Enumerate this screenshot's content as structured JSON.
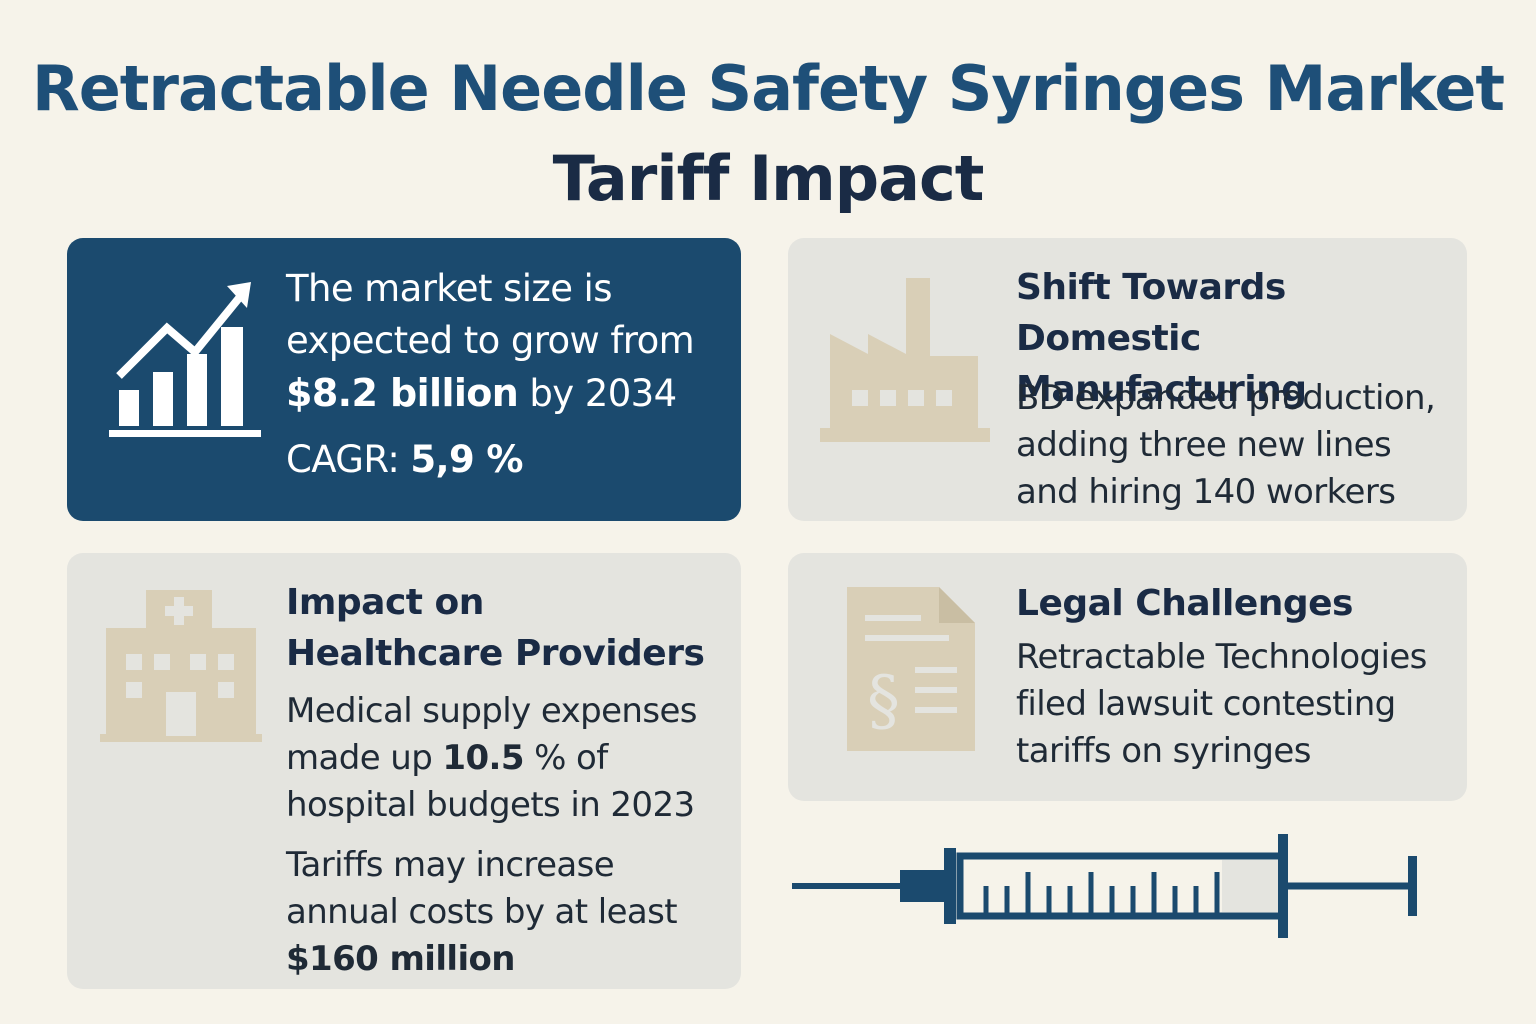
{
  "title": {
    "line1": "Retractable Needle Safety Syringes Market",
    "line2": "Tariff Impact"
  },
  "market": {
    "line1": "The market size is",
    "line2": "expected to grow from",
    "value": "$8.2 billion",
    "line3_rest": " by 2034",
    "cagr_label": "CAGR: ",
    "cagr_value": "5,9 %",
    "icon": "growth-chart-icon"
  },
  "domestic": {
    "heading_line1": "Shift Towards",
    "heading_line2": "Domestic Manufacturing",
    "body_line1": "BD expanded production,",
    "body_line2": "adding three new lines",
    "body_line3": "and hiring 140 workers",
    "icon": "factory-icon"
  },
  "healthcare": {
    "heading_line1": "Impact on",
    "heading_line2": "Healthcare Providers",
    "body1_line1": "Medical supply expenses",
    "body1_line2_pre": "made up ",
    "body1_value": "10.5",
    "body1_line2_post": " % of",
    "body1_line3": "hospital budgets in 2023",
    "body2_line1": "Tariffs may increase",
    "body2_line2": "annual costs by at least",
    "body2_value": "$160 million",
    "icon": "hospital-icon"
  },
  "legal": {
    "heading": "Legal Challenges",
    "body_line1": "Retractable Technologies",
    "body_line2": "filed lawsuit contesting",
    "body_line3": "tariffs on syringes",
    "icon": "legal-document-icon"
  },
  "illustration": {
    "icon": "syringe-icon"
  },
  "colors": {
    "background": "#f6f3ea",
    "primary_blue": "#1b4a6e",
    "title_blue": "#1e4f78",
    "dark_navy": "#1a2b45",
    "card_gray": "#e4e4df",
    "icon_beige": "#d9cfb7"
  }
}
